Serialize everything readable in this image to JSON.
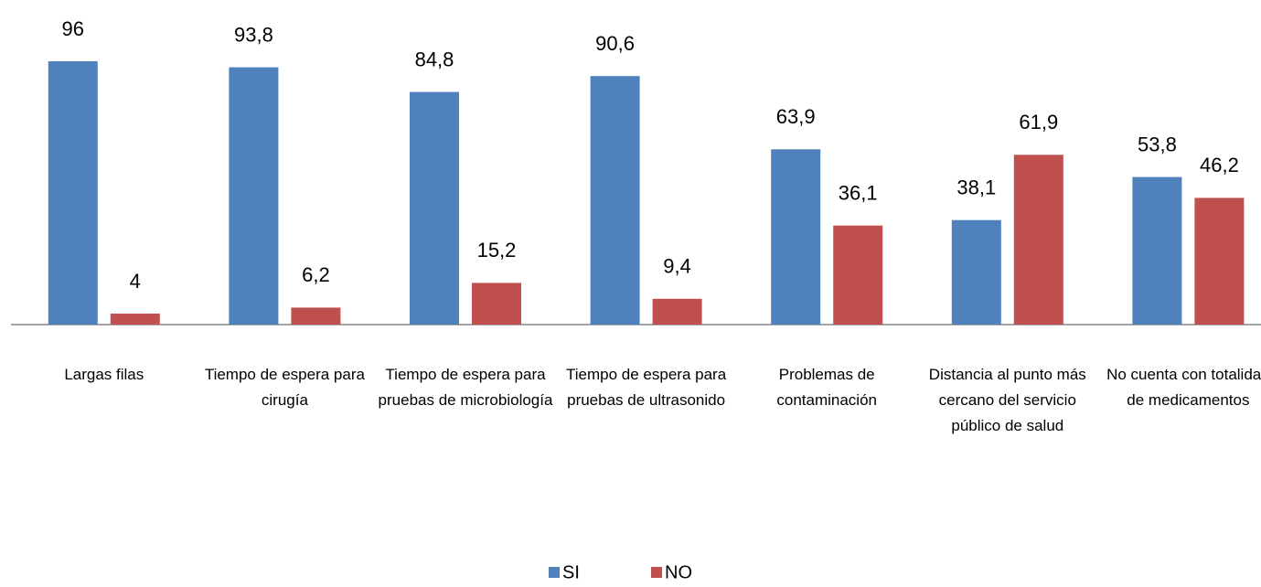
{
  "chart_data": {
    "type": "bar",
    "categories": [
      "Largas filas",
      "Tiempo de espera para cirugía",
      "Tiempo de espera para pruebas de microbiología",
      "Tiempo de espera para pruebas de ultrasonido",
      "Problemas de contaminación",
      "Distancia al punto más cercano del servicio público de salud",
      "No cuenta con totalidad de medicamentos"
    ],
    "series": [
      {
        "name": "SI",
        "color": "#4f81bd",
        "values": [
          96,
          93.8,
          84.8,
          90.6,
          63.9,
          38.1,
          53.8
        ],
        "value_labels": [
          "96",
          "93,8",
          "84,8",
          "90,6",
          "63,9",
          "38,1",
          "53,8"
        ]
      },
      {
        "name": "NO",
        "color": "#c0504d",
        "values": [
          4,
          6.2,
          15.2,
          9.4,
          36.1,
          61.9,
          46.2
        ],
        "value_labels": [
          "4",
          "6,2",
          "15,2",
          "9,4",
          "36,1",
          "61,9",
          "46,2"
        ]
      }
    ],
    "legend": "bottom"
  }
}
